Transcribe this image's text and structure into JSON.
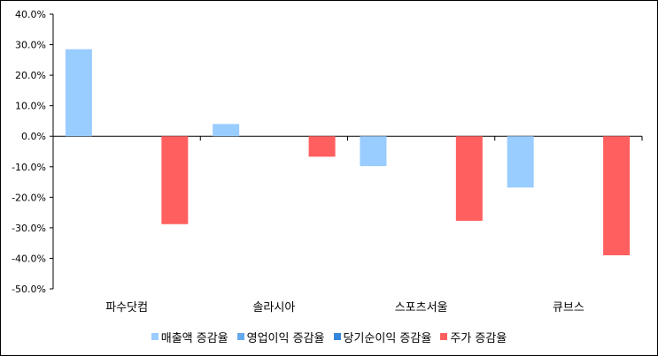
{
  "chart_data": {
    "type": "bar",
    "categories": [
      "파수닷컴",
      "솔라시아",
      "스포츠서울",
      "큐브스"
    ],
    "series": [
      {
        "name": "매출액 증감율",
        "color": "#99ccff",
        "values": [
          28.5,
          4.0,
          -9.8,
          -16.8
        ]
      },
      {
        "name": "영업이익 증감율",
        "color": "#66aaee",
        "values": [
          null,
          null,
          null,
          null
        ]
      },
      {
        "name": "당기순이익 증감율",
        "color": "#3388dd",
        "values": [
          null,
          null,
          null,
          null
        ]
      },
      {
        "name": "주가 증감율",
        "color": "#ff5f5f",
        "values": [
          -28.8,
          -6.7,
          -27.7,
          -39.0
        ]
      }
    ],
    "ylim": [
      -50,
      40
    ],
    "yticks": [
      40,
      30,
      20,
      10,
      0,
      -10,
      -20,
      -30,
      -40,
      -50
    ],
    "ytick_labels": [
      "40.0%",
      "30.0%",
      "20.0%",
      "10.0%",
      "0.0%",
      "-10.0%",
      "-20.0%",
      "-30.0%",
      "-40.0%",
      "-50.0%"
    ],
    "grid": false,
    "legend_position": "bottom"
  }
}
